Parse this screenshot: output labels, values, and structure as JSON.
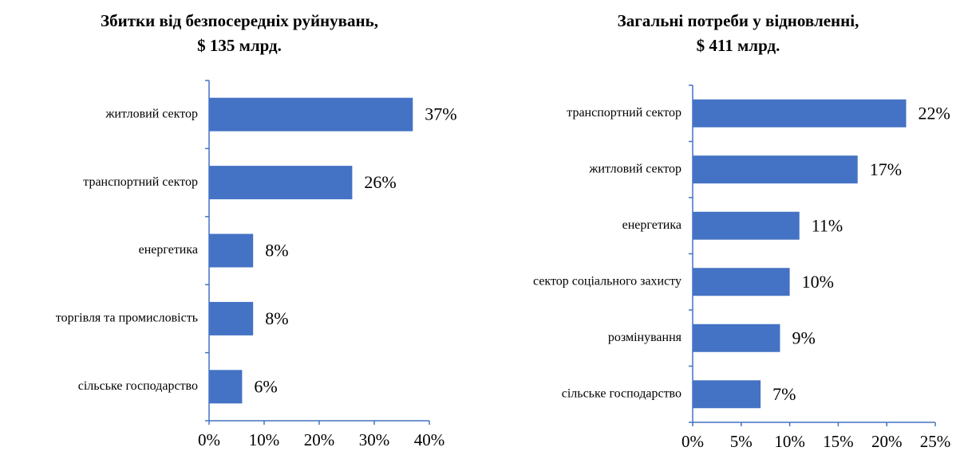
{
  "chart_data": [
    {
      "type": "barh",
      "title": [
        "Збитки від безпосередніх руйнувань,",
        "$ 135 млрд."
      ],
      "categories": [
        "житловий сектор",
        "транспортний сектор",
        "енергетика",
        "торгівля та промисловість",
        "сільське господарство"
      ],
      "values": [
        37,
        26,
        8,
        8,
        6
      ],
      "value_labels": [
        "37%",
        "26%",
        "8%",
        "8%",
        "6%"
      ],
      "color": "#4472c4",
      "xlim": [
        0,
        40
      ],
      "xticks": [
        {
          "value": 0,
          "label": "0%"
        },
        {
          "value": 10,
          "label": "10%"
        },
        {
          "value": 20,
          "label": "20%"
        },
        {
          "value": 30,
          "label": "30%"
        },
        {
          "value": 40,
          "label": "40%"
        }
      ],
      "grid": false
    },
    {
      "type": "barh",
      "title": [
        "Загальні потреби у відновленні,",
        "$ 411 млрд."
      ],
      "categories": [
        "транспортний сектор",
        "житловий сектор",
        "енергетика",
        "сектор соціального захисту",
        "розмінування",
        "сільське господарство"
      ],
      "values": [
        22,
        17,
        11,
        10,
        9,
        7
      ],
      "value_labels": [
        "22%",
        "17%",
        "11%",
        "10%",
        "9%",
        "7%"
      ],
      "color": "#4472c4",
      "xlim": [
        0,
        25
      ],
      "xticks": [
        {
          "value": 0,
          "label": "0%"
        },
        {
          "value": 5,
          "label": "5%"
        },
        {
          "value": 10,
          "label": "10%"
        },
        {
          "value": 15,
          "label": "15%"
        },
        {
          "value": 20,
          "label": "20%"
        },
        {
          "value": 25,
          "label": "25%"
        }
      ],
      "grid": false
    }
  ]
}
